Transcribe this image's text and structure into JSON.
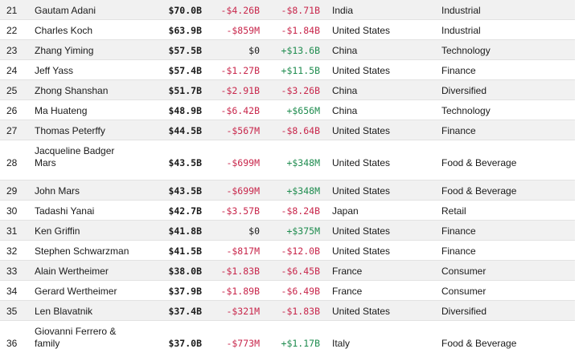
{
  "rows": [
    {
      "rank": "21",
      "name": "Gautam Adani",
      "worth": "$70.0B",
      "change": "-$4.26B",
      "ytd": "-$8.71B",
      "country": "India",
      "industry": "Industrial"
    },
    {
      "rank": "22",
      "name": "Charles Koch",
      "worth": "$63.9B",
      "change": "-$859M",
      "ytd": "-$1.84B",
      "country": "United States",
      "industry": "Industrial"
    },
    {
      "rank": "23",
      "name": "Zhang Yiming",
      "worth": "$57.5B",
      "change": "$0",
      "ytd": "+$13.6B",
      "country": "China",
      "industry": "Technology"
    },
    {
      "rank": "24",
      "name": "Jeff Yass",
      "worth": "$57.4B",
      "change": "-$1.27B",
      "ytd": "+$11.5B",
      "country": "United States",
      "industry": "Finance"
    },
    {
      "rank": "25",
      "name": "Zhong Shanshan",
      "worth": "$51.7B",
      "change": "-$2.91B",
      "ytd": "-$3.26B",
      "country": "China",
      "industry": "Diversified"
    },
    {
      "rank": "26",
      "name": "Ma Huateng",
      "worth": "$48.9B",
      "change": "-$6.42B",
      "ytd": "+$656M",
      "country": "China",
      "industry": "Technology"
    },
    {
      "rank": "27",
      "name": "Thomas Peterffy",
      "worth": "$44.5B",
      "change": "-$567M",
      "ytd": "-$8.64B",
      "country": "United States",
      "industry": "Finance"
    },
    {
      "rank": "28",
      "name": "Jacqueline Badger Mars",
      "worth": "$43.5B",
      "change": "-$699M",
      "ytd": "+$348M",
      "country": "United States",
      "industry": "Food & Beverage"
    },
    {
      "rank": "29",
      "name": "John Mars",
      "worth": "$43.5B",
      "change": "-$699M",
      "ytd": "+$348M",
      "country": "United States",
      "industry": "Food & Beverage"
    },
    {
      "rank": "30",
      "name": "Tadashi Yanai",
      "worth": "$42.7B",
      "change": "-$3.57B",
      "ytd": "-$8.24B",
      "country": "Japan",
      "industry": "Retail"
    },
    {
      "rank": "31",
      "name": "Ken Griffin",
      "worth": "$41.8B",
      "change": "$0",
      "ytd": "+$375M",
      "country": "United States",
      "industry": "Finance"
    },
    {
      "rank": "32",
      "name": "Stephen Schwarzman",
      "worth": "$41.5B",
      "change": "-$817M",
      "ytd": "-$12.0B",
      "country": "United States",
      "industry": "Finance"
    },
    {
      "rank": "33",
      "name": "Alain Wertheimer",
      "worth": "$38.0B",
      "change": "-$1.83B",
      "ytd": "-$6.45B",
      "country": "France",
      "industry": "Consumer"
    },
    {
      "rank": "34",
      "name": "Gerard Wertheimer",
      "worth": "$37.9B",
      "change": "-$1.89B",
      "ytd": "-$6.49B",
      "country": "France",
      "industry": "Consumer"
    },
    {
      "rank": "35",
      "name": "Len Blavatnik",
      "worth": "$37.4B",
      "change": "-$321M",
      "ytd": "-$1.83B",
      "country": "United States",
      "industry": "Diversified"
    },
    {
      "rank": "36",
      "name": "Giovanni Ferrero & family",
      "worth": "$37.0B",
      "change": "-$773M",
      "ytd": "+$1.17B",
      "country": "Italy",
      "industry": "Food & Beverage"
    }
  ]
}
